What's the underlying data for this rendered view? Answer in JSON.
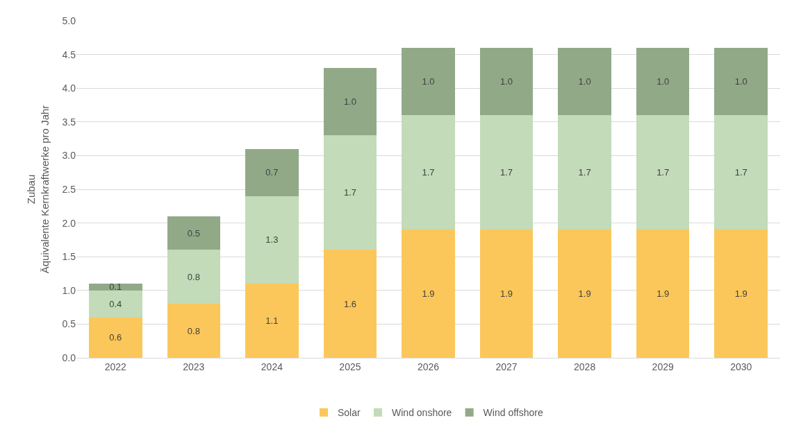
{
  "chart_data": {
    "type": "bar",
    "stacked": true,
    "ylabel": "Zubau\nÄquivalente Kernkraftwerke pro Jahr",
    "categories": [
      "2022",
      "2023",
      "2024",
      "2025",
      "2026",
      "2027",
      "2028",
      "2029",
      "2030"
    ],
    "series": [
      {
        "name": "Solar",
        "color": "#fcc75a",
        "values": [
          0.6,
          0.8,
          1.1,
          1.6,
          1.9,
          1.9,
          1.9,
          1.9,
          1.9
        ],
        "value_labels": [
          "0.6",
          "0.8",
          "1.1",
          "1.6",
          "1.9",
          "1.9",
          "1.9",
          "1.9",
          "1.9"
        ]
      },
      {
        "name": "Wind onshore",
        "color": "#c3dbb8",
        "values": [
          0.4,
          0.8,
          1.3,
          1.7,
          1.7,
          1.7,
          1.7,
          1.7,
          1.7
        ],
        "value_labels": [
          "0.4",
          "0.8",
          "1.3",
          "1.7",
          "1.7",
          "1.7",
          "1.7",
          "1.7",
          "1.7"
        ]
      },
      {
        "name": "Wind offshore",
        "color": "#92a988",
        "values": [
          0.1,
          0.5,
          0.7,
          1,
          1,
          1,
          1,
          1,
          1
        ],
        "value_labels": [
          "0.1",
          "0.5",
          "0.7",
          "1.0",
          "1.0",
          "1.0",
          "1.0",
          "1.0",
          "1.0"
        ]
      }
    ],
    "ylim": [
      0,
      5
    ],
    "yticks": [
      {
        "value": 0,
        "label": "0.0"
      },
      {
        "value": 0.5,
        "label": "0.5"
      },
      {
        "value": 1,
        "label": "1.0"
      },
      {
        "value": 1.5,
        "label": "1.5"
      },
      {
        "value": 2,
        "label": "2.0"
      },
      {
        "value": 2.5,
        "label": "2.5"
      },
      {
        "value": 3,
        "label": "3.0"
      },
      {
        "value": 3.5,
        "label": "3.5"
      },
      {
        "value": 4,
        "label": "4.0"
      },
      {
        "value": 4.5,
        "label": "4.5"
      },
      {
        "value": 5,
        "label": "5.0"
      }
    ],
    "grid": "y",
    "legend": "bottom"
  }
}
